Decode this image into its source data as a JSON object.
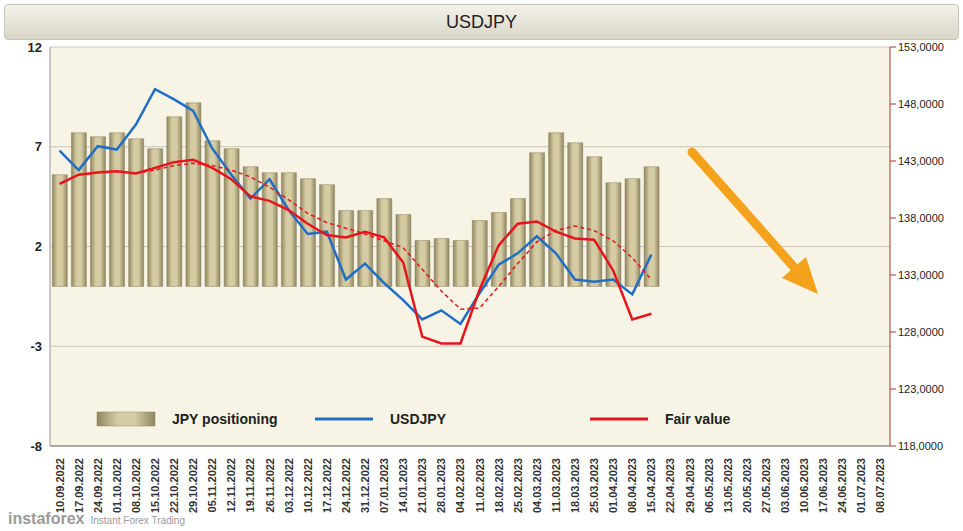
{
  "chart_data": {
    "type": "bar",
    "title": "USDJPY",
    "categories": [
      "10.09.2022",
      "17.09.2022",
      "24.09.2022",
      "01.10.2022",
      "08.10.2022",
      "15.10.2022",
      "22.10.2022",
      "29.10.2022",
      "05.11.2022",
      "12.11.2022",
      "19.11.2022",
      "26.11.2022",
      "03.12.2022",
      "10.12.2022",
      "17.12.2022",
      "24.12.2022",
      "31.12.2022",
      "07.01.2023",
      "14.01.2023",
      "21.01.2023",
      "28.01.2023",
      "04.02.2023",
      "11.02.2023",
      "18.02.2023",
      "25.02.2023",
      "04.03.2023",
      "11.03.2023",
      "18.03.2023",
      "25.03.2023",
      "01.04.2023",
      "08.04.2023",
      "15.04.2023",
      "22.04.2023",
      "29.04.2023",
      "06.05.2023",
      "13.05.2023",
      "20.05.2023",
      "27.05.2023",
      "03.06.2023",
      "10.06.2023",
      "17.06.2023",
      "24.06.2023",
      "01.07.2023",
      "08.07.2023"
    ],
    "series": [
      {
        "name": "JPY positioning",
        "type": "bar",
        "color": "#d6cca4",
        "values": [
          5.6,
          7.7,
          7.5,
          7.7,
          7.4,
          6.9,
          8.5,
          9.2,
          7.3,
          6.9,
          6.0,
          5.7,
          5.7,
          5.4,
          5.1,
          3.8,
          3.8,
          4.4,
          3.6,
          2.3,
          2.4,
          2.3,
          3.3,
          3.7,
          4.4,
          6.7,
          7.7,
          7.2,
          6.5,
          5.2,
          5.4,
          6.0,
          null,
          null,
          null,
          null,
          null,
          null,
          null,
          null,
          null,
          null,
          null,
          null
        ]
      },
      {
        "name": "USDJPY",
        "type": "line",
        "axis": "y2",
        "color": "#1f6fc5",
        "values": [
          143.9,
          142.2,
          144.3,
          144.0,
          146.2,
          149.3,
          148.4,
          147.4,
          144.1,
          141.8,
          139.7,
          141.4,
          138.7,
          136.6,
          136.8,
          132.6,
          134.0,
          132.3,
          130.8,
          129.1,
          129.9,
          128.7,
          131.4,
          133.9,
          134.9,
          136.4,
          134.9,
          132.6,
          132.4,
          132.6,
          131.3,
          134.8,
          null,
          null,
          null,
          null,
          null,
          null,
          null,
          null,
          null,
          null,
          null,
          null
        ]
      },
      {
        "name": "Fair value",
        "type": "line",
        "axis": "y2",
        "color": "#e8141b",
        "values": [
          141.0,
          141.8,
          142.0,
          142.1,
          141.9,
          142.4,
          142.9,
          143.1,
          142.4,
          141.4,
          139.9,
          139.5,
          138.7,
          137.5,
          136.5,
          136.3,
          136.8,
          136.3,
          134.1,
          127.6,
          127.0,
          127.0,
          131.7,
          135.6,
          137.5,
          137.7,
          136.8,
          136.2,
          136.1,
          133.4,
          129.1,
          129.6,
          null,
          null,
          null,
          null,
          null,
          null,
          null,
          null,
          null,
          null,
          null,
          null
        ]
      },
      {
        "type": "line",
        "axis": "y2",
        "color": "#e8141b",
        "line_style": "dashed",
        "values": [
          null,
          null,
          null,
          null,
          141.9,
          142.2,
          142.6,
          142.8,
          142.6,
          142.2,
          141.6,
          140.7,
          139.6,
          138.4,
          137.6,
          137.1,
          136.6,
          136.0,
          135.4,
          133.5,
          131.6,
          130.0,
          130.1,
          132.0,
          134.0,
          135.9,
          136.9,
          137.3,
          136.9,
          136.0,
          134.5,
          132.6,
          null,
          null,
          null,
          null,
          null,
          null,
          null,
          null,
          null,
          null,
          null,
          null
        ]
      }
    ],
    "ylim": [
      -8,
      12
    ],
    "yticks": [
      -8,
      -3,
      2,
      7,
      12
    ],
    "y2lim": [
      118,
      153
    ],
    "y2ticks": [
      {
        "value": 118,
        "label": "118,0000"
      },
      {
        "value": 123,
        "label": "123,0000"
      },
      {
        "value": 128,
        "label": "128,0000"
      },
      {
        "value": 133,
        "label": "133,0000"
      },
      {
        "value": 138,
        "label": "138,0000"
      },
      {
        "value": 143,
        "label": "143,0000"
      },
      {
        "value": 148,
        "label": "148,0000"
      },
      {
        "value": 153,
        "label": "153,0000"
      }
    ],
    "grid": true,
    "legend": "bottom",
    "annotations": [
      "instaforex",
      "Instant Forex Trading"
    ]
  }
}
